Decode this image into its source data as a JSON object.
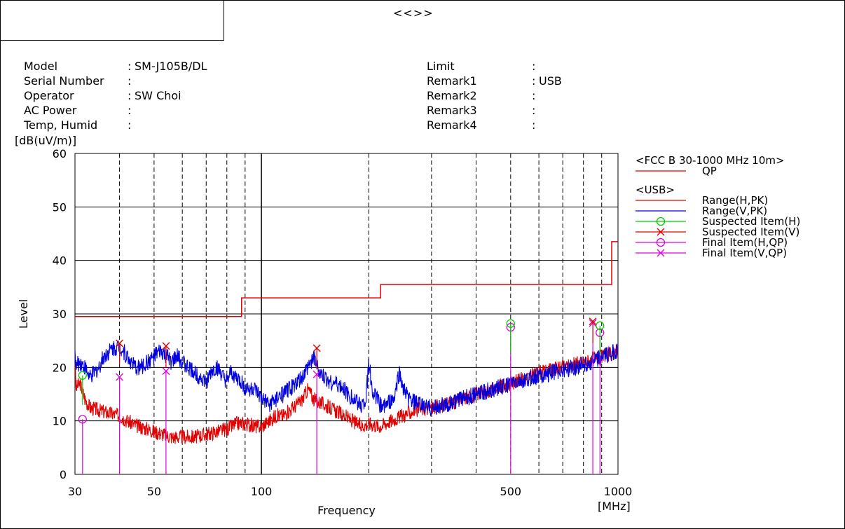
{
  "header": {
    "title": "<<>>"
  },
  "info_left": [
    {
      "label": "Model",
      "value": "SM-J105B/DL"
    },
    {
      "label": "Serial Number",
      "value": ""
    },
    {
      "label": "Operator",
      "value": "SW Choi"
    },
    {
      "label": "AC Power",
      "value": ""
    },
    {
      "label": "Temp, Humid",
      "value": ""
    }
  ],
  "info_right": [
    {
      "label": "Limit",
      "value": ""
    },
    {
      "label": "Remark1",
      "value": "USB"
    },
    {
      "label": "Remark2",
      "value": ""
    },
    {
      "label": "Remark3",
      "value": ""
    },
    {
      "label": "Remark4",
      "value": ""
    }
  ],
  "chart_data": {
    "type": "line",
    "xlabel": "Frequency",
    "xunit": "[MHz]",
    "ylabel": "Level",
    "yunit": "[dB(uV/m)]",
    "x_scale": "log",
    "xlim": [
      30,
      1000
    ],
    "ylim": [
      0,
      60
    ],
    "x_ticks": [
      30,
      50,
      100,
      500,
      1000
    ],
    "x_minor_ticks": [
      40,
      60,
      70,
      80,
      90,
      200,
      300,
      400,
      600,
      700,
      800,
      900
    ],
    "y_ticks": [
      0,
      10,
      20,
      30,
      40,
      50,
      60
    ],
    "grid": true,
    "legend_position": "right",
    "legend": [
      {
        "group": "<FCC B 30-1000 MHz 10m>",
        "items": [
          {
            "name": "QP",
            "color": "#e00000",
            "marker": "line"
          }
        ]
      },
      {
        "group": "<USB>",
        "items": [
          {
            "name": "Range(H,PK)",
            "color": "#e00000",
            "marker": "line"
          },
          {
            "name": "Range(V,PK)",
            "color": "#0000e0",
            "marker": "line"
          },
          {
            "name": "Suspected Item(H)",
            "color": "#00cc00",
            "marker": "circle"
          },
          {
            "name": "Suspected Item(V)",
            "color": "#e00000",
            "marker": "cross"
          },
          {
            "name": "Final Item(H,QP)",
            "color": "#e000e0",
            "marker": "circle"
          },
          {
            "name": "Final Item(V,QP)",
            "color": "#e000e0",
            "marker": "cross"
          }
        ]
      }
    ],
    "limit_qp": {
      "name": "QP",
      "color": "#e00000",
      "points": [
        [
          30,
          29.5
        ],
        [
          88,
          29.5
        ],
        [
          88,
          33.0
        ],
        [
          216,
          33.0
        ],
        [
          216,
          35.5
        ],
        [
          960,
          35.5
        ],
        [
          960,
          43.5
        ],
        [
          1000,
          43.5
        ]
      ]
    },
    "series": [
      {
        "name": "Range(H,PK)",
        "color": "#e00000",
        "points": [
          [
            30,
            16
          ],
          [
            31,
            17
          ],
          [
            32,
            14
          ],
          [
            33,
            12.5
          ],
          [
            35,
            12
          ],
          [
            37,
            11.5
          ],
          [
            40,
            11
          ],
          [
            42,
            10
          ],
          [
            45,
            9
          ],
          [
            48,
            8.5
          ],
          [
            50,
            8
          ],
          [
            53,
            7.5
          ],
          [
            56,
            7
          ],
          [
            60,
            7
          ],
          [
            65,
            7
          ],
          [
            70,
            7.5
          ],
          [
            75,
            8
          ],
          [
            80,
            8.5
          ],
          [
            85,
            9.5
          ],
          [
            90,
            9.5
          ],
          [
            95,
            9
          ],
          [
            100,
            9
          ],
          [
            105,
            10
          ],
          [
            110,
            11
          ],
          [
            115,
            11
          ],
          [
            120,
            12
          ],
          [
            125,
            13
          ],
          [
            130,
            14
          ],
          [
            135,
            16
          ],
          [
            140,
            14
          ],
          [
            150,
            13
          ],
          [
            160,
            12
          ],
          [
            170,
            11
          ],
          [
            180,
            10
          ],
          [
            190,
            9
          ],
          [
            200,
            9.5
          ],
          [
            215,
            9
          ],
          [
            230,
            10
          ],
          [
            250,
            11
          ],
          [
            270,
            12
          ],
          [
            300,
            12.5
          ],
          [
            330,
            13
          ],
          [
            360,
            14
          ],
          [
            400,
            15
          ],
          [
            450,
            16
          ],
          [
            500,
            17
          ],
          [
            550,
            18
          ],
          [
            600,
            19
          ],
          [
            650,
            19.5
          ],
          [
            700,
            20
          ],
          [
            750,
            20.5
          ],
          [
            800,
            21
          ],
          [
            850,
            21.5
          ],
          [
            900,
            22
          ],
          [
            950,
            22.5
          ],
          [
            1000,
            23
          ]
        ]
      },
      {
        "name": "Range(V,PK)",
        "color": "#0000e0",
        "points": [
          [
            30,
            20
          ],
          [
            31,
            21
          ],
          [
            32,
            20
          ],
          [
            33,
            18
          ],
          [
            34,
            19
          ],
          [
            35,
            20
          ],
          [
            36,
            22
          ],
          [
            38,
            23.5
          ],
          [
            40,
            24
          ],
          [
            42,
            22
          ],
          [
            44,
            20
          ],
          [
            46,
            20
          ],
          [
            48,
            21
          ],
          [
            50,
            22
          ],
          [
            52,
            23
          ],
          [
            54,
            22
          ],
          [
            56,
            21
          ],
          [
            58,
            22
          ],
          [
            60,
            21
          ],
          [
            62,
            20
          ],
          [
            65,
            19
          ],
          [
            68,
            18
          ],
          [
            70,
            17
          ],
          [
            72,
            19
          ],
          [
            75,
            20
          ],
          [
            78,
            18
          ],
          [
            80,
            17
          ],
          [
            82,
            19
          ],
          [
            85,
            18
          ],
          [
            88,
            17
          ],
          [
            90,
            16
          ],
          [
            95,
            16
          ],
          [
            100,
            14
          ],
          [
            105,
            13
          ],
          [
            110,
            14
          ],
          [
            115,
            15
          ],
          [
            120,
            16
          ],
          [
            125,
            17
          ],
          [
            130,
            18
          ],
          [
            135,
            20
          ],
          [
            140,
            22
          ],
          [
            145,
            19
          ],
          [
            150,
            18
          ],
          [
            160,
            17
          ],
          [
            170,
            16
          ],
          [
            180,
            14
          ],
          [
            190,
            13
          ],
          [
            196,
            14
          ],
          [
            200,
            21
          ],
          [
            204,
            16
          ],
          [
            215,
            13
          ],
          [
            225,
            13
          ],
          [
            235,
            14
          ],
          [
            243,
            19
          ],
          [
            250,
            16
          ],
          [
            260,
            14
          ],
          [
            280,
            13
          ],
          [
            300,
            12.5
          ],
          [
            330,
            13
          ],
          [
            360,
            14
          ],
          [
            400,
            15
          ],
          [
            450,
            16
          ],
          [
            500,
            17
          ],
          [
            550,
            17.5
          ],
          [
            600,
            18.5
          ],
          [
            650,
            19
          ],
          [
            700,
            19.5
          ],
          [
            750,
            20
          ],
          [
            800,
            20.5
          ],
          [
            850,
            21
          ],
          [
            900,
            22
          ],
          [
            950,
            22.5
          ],
          [
            1000,
            23
          ]
        ]
      }
    ],
    "suspected_h": [
      [
        31.5,
        18.5
      ],
      [
        500,
        28.2
      ],
      [
        890,
        27.8
      ]
    ],
    "suspected_v": [
      [
        40,
        24.5
      ],
      [
        54,
        24.0
      ],
      [
        143,
        23.6
      ],
      [
        850,
        28.6
      ]
    ],
    "final_h_qp": [
      [
        31.5,
        10.3
      ],
      [
        500,
        27.5
      ],
      [
        890,
        26.5
      ]
    ],
    "final_v_qp": [
      [
        40,
        18.2
      ],
      [
        54,
        19.3
      ],
      [
        143,
        18.7
      ],
      [
        850,
        28.3
      ]
    ]
  }
}
